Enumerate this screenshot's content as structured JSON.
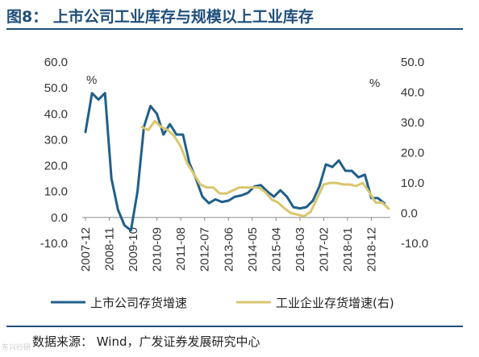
{
  "figure": {
    "title": "图8：  上市公司工业库存与规模以上工业库存",
    "source": "数据来源： Wind，广发证券发展研究中心",
    "watermark": "东兴行研"
  },
  "chart_data": {
    "type": "line",
    "x_tick_labels": [
      "2007-12",
      "2008-11",
      "2009-10",
      "2010-09",
      "2011-08",
      "2012-07",
      "2013-06",
      "2014-05",
      "2015-04",
      "2016-03",
      "2017-02",
      "2018-01",
      "2018-12"
    ],
    "y_left": {
      "unit": "%",
      "range": [
        -10,
        60
      ],
      "ticks": [
        "-10.0",
        "0.0",
        "10.0",
        "20.0",
        "30.0",
        "40.0",
        "50.0",
        "60.0"
      ]
    },
    "y_right": {
      "unit": "%",
      "range": [
        -10,
        50
      ],
      "ticks": [
        "-10.0",
        "0.0",
        "10.0",
        "20.0",
        "30.0",
        "40.0",
        "50.0"
      ]
    },
    "grid": false,
    "legend_position": "bottom",
    "series": [
      {
        "name": "上市公司存货增速",
        "axis": "left",
        "color": "#1f5f8b",
        "points": [
          [
            "2007-12",
            33
          ],
          [
            "2008-03",
            48
          ],
          [
            "2008-06",
            45.5
          ],
          [
            "2008-09",
            48
          ],
          [
            "2008-12",
            15
          ],
          [
            "2009-03",
            3
          ],
          [
            "2009-06",
            -3
          ],
          [
            "2009-09",
            -5
          ],
          [
            "2009-12",
            10
          ],
          [
            "2010-03",
            35
          ],
          [
            "2010-06",
            43
          ],
          [
            "2010-09",
            40
          ],
          [
            "2010-12",
            32
          ],
          [
            "2011-03",
            36
          ],
          [
            "2011-06",
            32
          ],
          [
            "2011-09",
            32
          ],
          [
            "2011-12",
            21
          ],
          [
            "2012-03",
            15
          ],
          [
            "2012-06",
            8
          ],
          [
            "2012-09",
            5.5
          ],
          [
            "2012-12",
            7
          ],
          [
            "2013-03",
            6
          ],
          [
            "2013-06",
            6.5
          ],
          [
            "2013-09",
            8
          ],
          [
            "2013-12",
            8.5
          ],
          [
            "2014-03",
            9.5
          ],
          [
            "2014-06",
            12
          ],
          [
            "2014-09",
            12.5
          ],
          [
            "2014-12",
            10
          ],
          [
            "2015-03",
            8
          ],
          [
            "2015-06",
            10.5
          ],
          [
            "2015-09",
            8
          ],
          [
            "2015-12",
            4
          ],
          [
            "2016-03",
            3.5
          ],
          [
            "2016-06",
            4
          ],
          [
            "2016-09",
            6.5
          ],
          [
            "2016-12",
            12
          ],
          [
            "2017-03",
            20.5
          ],
          [
            "2017-06",
            19.5
          ],
          [
            "2017-09",
            22
          ],
          [
            "2017-12",
            18
          ],
          [
            "2018-03",
            18
          ],
          [
            "2018-06",
            15.5
          ],
          [
            "2018-09",
            16.5
          ],
          [
            "2018-12",
            7.5
          ],
          [
            "2019-03",
            7.5
          ],
          [
            "2019-06",
            5.5
          ]
        ]
      },
      {
        "name": "工业企业存货增速(右)",
        "axis": "right",
        "color": "#d9c66e",
        "points": [
          [
            "2010-02",
            28.5
          ],
          [
            "2010-05",
            27.5
          ],
          [
            "2010-08",
            30.5
          ],
          [
            "2010-11",
            28.5
          ],
          [
            "2011-02",
            27.5
          ],
          [
            "2011-05",
            25.5
          ],
          [
            "2011-08",
            22
          ],
          [
            "2011-11",
            16.5
          ],
          [
            "2012-02",
            13
          ],
          [
            "2012-05",
            9.5
          ],
          [
            "2012-08",
            8.5
          ],
          [
            "2012-11",
            8.5
          ],
          [
            "2013-02",
            6.5
          ],
          [
            "2013-05",
            6.5
          ],
          [
            "2013-08",
            7.5
          ],
          [
            "2013-11",
            8.5
          ],
          [
            "2014-02",
            8.5
          ],
          [
            "2014-05",
            8.5
          ],
          [
            "2014-08",
            8.5
          ],
          [
            "2014-11",
            7
          ],
          [
            "2015-02",
            4.5
          ],
          [
            "2015-05",
            3.5
          ],
          [
            "2015-08",
            1.5
          ],
          [
            "2015-11",
            0
          ],
          [
            "2016-02",
            -0.5
          ],
          [
            "2016-05",
            -1
          ],
          [
            "2016-08",
            0.5
          ],
          [
            "2016-11",
            5
          ],
          [
            "2017-02",
            9.5
          ],
          [
            "2017-05",
            10
          ],
          [
            "2017-08",
            10
          ],
          [
            "2017-11",
            9.5
          ],
          [
            "2018-02",
            9.5
          ],
          [
            "2018-05",
            9
          ],
          [
            "2018-08",
            10
          ],
          [
            "2018-11",
            7
          ],
          [
            "2019-02",
            3.5
          ],
          [
            "2019-05",
            3.5
          ],
          [
            "2019-08",
            1.5
          ]
        ]
      }
    ]
  }
}
